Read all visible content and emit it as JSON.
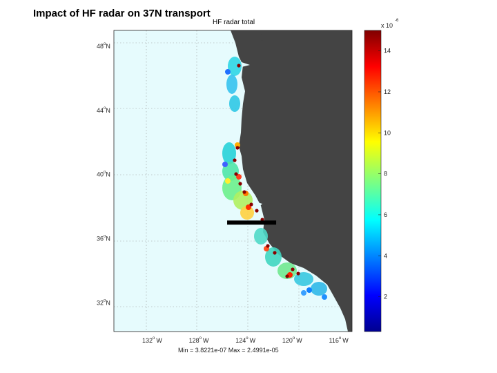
{
  "slide": {
    "title": "Impact of HF radar on 37N transport"
  },
  "map": {
    "title": "HF radar total",
    "ocean_color": "#e6fbfd",
    "land_color": "#444444",
    "lat_ticks": [
      {
        "deg": "48",
        "sup": "o",
        "hemi": "N",
        "lat": 48
      },
      {
        "deg": "44",
        "sup": "o",
        "hemi": "N",
        "lat": 44
      },
      {
        "deg": "40",
        "sup": "o",
        "hemi": "N",
        "lat": 40
      },
      {
        "deg": "36",
        "sup": "o",
        "hemi": "N",
        "lat": 36
      },
      {
        "deg": "32",
        "sup": "o",
        "hemi": "N",
        "lat": 32
      }
    ],
    "lon_ticks": [
      {
        "deg": "132",
        "sup": "o",
        "hemi": "W",
        "lon": -132
      },
      {
        "deg": "128",
        "sup": "o",
        "hemi": "W",
        "lon": -128
      },
      {
        "deg": "124",
        "sup": "o",
        "hemi": "W",
        "lon": -124
      },
      {
        "deg": "120",
        "sup": "o",
        "hemi": "W",
        "lon": -120
      },
      {
        "deg": "116",
        "sup": "o",
        "hemi": "W",
        "lon": -116
      }
    ],
    "lat_range": [
      30.2,
      49.0
    ],
    "lon_range": [
      -135.9,
      -115.5
    ],
    "transect": {
      "lat": 37.0,
      "lon_start": -126.2,
      "lon_end": -122.0
    },
    "stats": "Min = 3.8221e-07 Max = 2.4991e-05"
  },
  "colorbar": {
    "multiplier": "x 10",
    "exponent": "-6",
    "range": [
      0.3,
      15.0
    ],
    "ticks": [
      {
        "label": "2",
        "value": 2
      },
      {
        "label": "4",
        "value": 4
      },
      {
        "label": "6",
        "value": 6
      },
      {
        "label": "8",
        "value": 8
      },
      {
        "label": "10",
        "value": 10
      },
      {
        "label": "12",
        "value": 12
      },
      {
        "label": "14",
        "value": 14
      }
    ]
  }
}
